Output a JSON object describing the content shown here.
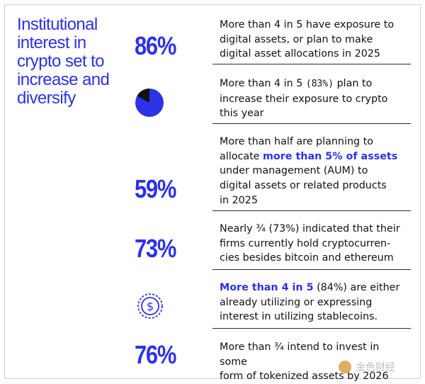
{
  "title": "Institutional interest in crypto set to increase and diversify",
  "colors": {
    "accent": "#2d32e6",
    "text": "#111111",
    "divider": "#2a2a2a",
    "pie_dark": "#111111"
  },
  "rows": [
    {
      "stat": "86%",
      "lines": [
        "More than 4 in 5 have exposure to",
        "digital assets, or plan to make",
        "digital asset allocations in 2025"
      ]
    },
    {
      "icon": "pie-chart-icon",
      "pie_fraction": 0.83,
      "text_start": "More than 4 in 5 ",
      "text_paren": "(83%)",
      "text_rest": " plan to\nincrease their exposure to crypto\nthis year"
    },
    {
      "stat": "59%",
      "text_start": "More than half  are planning to\nallocate ",
      "text_highlight": "more than 5% of assets",
      "text_rest": "\nunder management (AUM) to\ndigital assets or related products\nin 2025"
    },
    {
      "stat": "73%",
      "lines": [
        "Nearly ¾ (73%) indicated that their",
        "firms currently hold cryptocurren-",
        "cies besides bitcoin and ethereum"
      ]
    },
    {
      "icon": "dollar-coin-icon",
      "text_highlight": "More than 4 in 5",
      "text_rest": " (84%) are either\nalready utilizing or expressing\ninterest in utilizing stablecoins."
    },
    {
      "stat": "76%",
      "lines": [
        "More than ¾ intend to invest in some",
        "form of tokenized assets by 2026"
      ]
    }
  ],
  "watermark": "金色财经"
}
